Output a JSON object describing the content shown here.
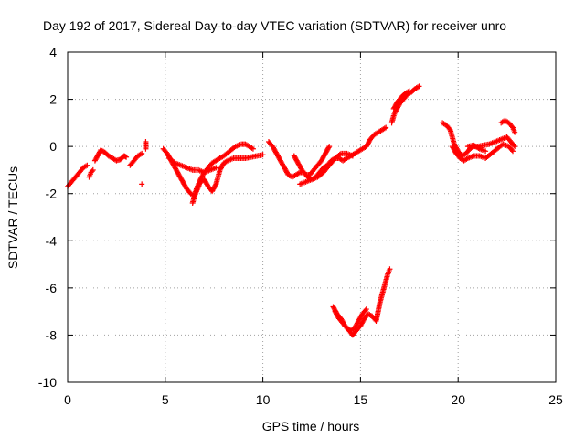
{
  "chart_data": {
    "type": "scatter",
    "title": "Day 192 of 2017, Sidereal Day-to-day VTEC variation (SDTVAR) for receiver unro",
    "xlabel": "GPS time / hours",
    "ylabel": "SDTVAR / TECUs",
    "xlim": [
      0,
      25
    ],
    "ylim": [
      -10,
      4
    ],
    "x_ticks": [
      0,
      5,
      10,
      15,
      20,
      25
    ],
    "y_ticks": [
      -10,
      -8,
      -6,
      -4,
      -2,
      0,
      2,
      4
    ],
    "grid": true,
    "marker": "plus",
    "colors": {
      "series": "#ff0000",
      "grid": "#a0a0a0",
      "axes": "#000000"
    },
    "series": [
      {
        "segments": [
          [
            [
              0.0,
              -1.7
            ],
            [
              0.2,
              -1.5
            ],
            [
              0.4,
              -1.3
            ],
            [
              0.6,
              -1.1
            ],
            [
              0.8,
              -0.9
            ],
            [
              1.0,
              -0.8
            ]
          ],
          [
            [
              1.1,
              -1.3
            ],
            [
              1.2,
              -1.1
            ],
            [
              1.3,
              -1.0
            ]
          ],
          [
            [
              1.4,
              -0.6
            ],
            [
              1.6,
              -0.3
            ],
            [
              1.7,
              -0.15
            ],
            [
              1.9,
              -0.25
            ],
            [
              2.1,
              -0.4
            ],
            [
              2.3,
              -0.5
            ],
            [
              2.5,
              -0.6
            ],
            [
              2.7,
              -0.55
            ],
            [
              2.9,
              -0.4
            ],
            [
              3.0,
              -0.45
            ]
          ],
          [
            [
              3.2,
              -0.8
            ],
            [
              3.4,
              -0.6
            ],
            [
              3.6,
              -0.4
            ],
            [
              3.8,
              -0.3
            ]
          ],
          [
            [
              3.8,
              -1.6
            ]
          ],
          [
            [
              4.0,
              0.2
            ],
            [
              4.0,
              -0.1
            ]
          ],
          [
            [
              4.9,
              -0.1
            ],
            [
              5.1,
              -0.3
            ],
            [
              5.3,
              -0.6
            ],
            [
              5.5,
              -0.9
            ],
            [
              5.7,
              -1.2
            ],
            [
              5.9,
              -1.5
            ],
            [
              6.1,
              -1.8
            ],
            [
              6.3,
              -2.0
            ],
            [
              6.5,
              -2.1
            ],
            [
              6.6,
              -1.8
            ],
            [
              6.8,
              -1.4
            ],
            [
              7.0,
              -1.1
            ],
            [
              7.2,
              -0.9
            ],
            [
              7.4,
              -0.7
            ],
            [
              7.6,
              -0.6
            ],
            [
              7.8,
              -0.5
            ],
            [
              8.0,
              -0.4
            ],
            [
              8.3,
              -0.2
            ],
            [
              8.6,
              0.0
            ],
            [
              8.9,
              0.1
            ],
            [
              9.1,
              0.1
            ],
            [
              9.3,
              0.0
            ],
            [
              9.5,
              -0.1
            ]
          ],
          [
            [
              5.2,
              -0.5
            ],
            [
              5.5,
              -0.7
            ],
            [
              5.8,
              -0.8
            ],
            [
              6.1,
              -0.9
            ],
            [
              6.4,
              -1.0
            ],
            [
              6.7,
              -1.0
            ],
            [
              7.0,
              -1.1
            ],
            [
              7.3,
              -1.0
            ],
            [
              7.6,
              -0.9
            ]
          ],
          [
            [
              6.4,
              -2.4
            ],
            [
              6.5,
              -2.1
            ],
            [
              6.6,
              -1.9
            ],
            [
              6.8,
              -1.5
            ],
            [
              7.0,
              -1.4
            ],
            [
              7.2,
              -1.7
            ],
            [
              7.4,
              -1.9
            ],
            [
              7.6,
              -1.6
            ],
            [
              7.8,
              -1.0
            ],
            [
              8.0,
              -0.7
            ],
            [
              8.2,
              -0.6
            ],
            [
              8.5,
              -0.5
            ],
            [
              8.8,
              -0.5
            ],
            [
              9.1,
              -0.5
            ],
            [
              9.4,
              -0.45
            ],
            [
              9.7,
              -0.4
            ],
            [
              10.0,
              -0.35
            ]
          ],
          [
            [
              10.3,
              0.2
            ],
            [
              10.5,
              0.0
            ],
            [
              10.7,
              -0.3
            ],
            [
              10.9,
              -0.6
            ],
            [
              11.1,
              -0.9
            ],
            [
              11.3,
              -1.2
            ],
            [
              11.5,
              -1.3
            ],
            [
              11.7,
              -1.2
            ],
            [
              11.9,
              -1.1
            ],
            [
              12.1,
              -1.1
            ],
            [
              12.3,
              -1.3
            ],
            [
              12.5,
              -1.4
            ],
            [
              12.7,
              -1.3
            ],
            [
              12.9,
              -1.1
            ],
            [
              13.1,
              -0.9
            ],
            [
              13.3,
              -0.8
            ],
            [
              13.5,
              -0.6
            ],
            [
              13.7,
              -0.5
            ],
            [
              13.9,
              -0.5
            ],
            [
              14.1,
              -0.6
            ],
            [
              14.3,
              -0.5
            ],
            [
              14.5,
              -0.4
            ],
            [
              14.7,
              -0.3
            ],
            [
              14.9,
              -0.2
            ],
            [
              15.1,
              -0.1
            ],
            [
              15.3,
              0.0
            ],
            [
              15.5,
              0.3
            ],
            [
              15.7,
              0.5
            ],
            [
              15.9,
              0.6
            ],
            [
              16.1,
              0.7
            ],
            [
              16.3,
              0.8
            ]
          ],
          [
            [
              11.6,
              -0.4
            ],
            [
              11.8,
              -0.7
            ],
            [
              12.0,
              -1.0
            ],
            [
              12.2,
              -1.2
            ],
            [
              12.4,
              -1.2
            ],
            [
              12.6,
              -1.0
            ],
            [
              12.8,
              -0.8
            ],
            [
              13.0,
              -0.6
            ],
            [
              13.2,
              -0.3
            ],
            [
              13.4,
              0.0
            ]
          ],
          [
            [
              11.9,
              -1.6
            ],
            [
              12.2,
              -1.5
            ],
            [
              12.5,
              -1.4
            ],
            [
              12.8,
              -1.3
            ],
            [
              13.1,
              -1.1
            ],
            [
              13.4,
              -0.8
            ],
            [
              13.7,
              -0.5
            ],
            [
              14.0,
              -0.3
            ],
            [
              14.3,
              -0.3
            ],
            [
              14.6,
              -0.4
            ]
          ],
          [
            [
              16.6,
              1.0
            ],
            [
              16.7,
              1.3
            ],
            [
              16.8,
              1.5
            ],
            [
              17.0,
              1.8
            ],
            [
              17.2,
              2.0
            ],
            [
              17.4,
              2.2
            ],
            [
              17.6,
              2.3
            ],
            [
              17.8,
              2.45
            ],
            [
              18.0,
              2.55
            ]
          ],
          [
            [
              16.7,
              1.6
            ],
            [
              16.9,
              1.9
            ],
            [
              17.1,
              2.1
            ],
            [
              17.3,
              2.25
            ],
            [
              17.5,
              2.35
            ]
          ],
          [
            [
              13.6,
              -6.8
            ],
            [
              13.8,
              -7.1
            ],
            [
              14.0,
              -7.3
            ],
            [
              14.2,
              -7.6
            ],
            [
              14.4,
              -7.8
            ],
            [
              14.6,
              -8.0
            ],
            [
              14.8,
              -7.8
            ],
            [
              15.0,
              -7.6
            ],
            [
              15.2,
              -7.3
            ],
            [
              15.4,
              -7.1
            ],
            [
              15.6,
              -7.2
            ],
            [
              15.8,
              -7.4
            ],
            [
              15.9,
              -7.0
            ],
            [
              16.0,
              -6.6
            ],
            [
              16.1,
              -6.3
            ],
            [
              16.2,
              -6.0
            ],
            [
              16.3,
              -5.7
            ],
            [
              16.4,
              -5.4
            ],
            [
              16.5,
              -5.2
            ]
          ],
          [
            [
              13.7,
              -7.0
            ],
            [
              13.9,
              -7.3
            ],
            [
              14.1,
              -7.5
            ],
            [
              14.3,
              -7.7
            ],
            [
              14.5,
              -7.8
            ],
            [
              14.7,
              -7.7
            ],
            [
              14.9,
              -7.4
            ],
            [
              15.1,
              -7.1
            ],
            [
              15.3,
              -6.9
            ]
          ],
          [
            [
              19.2,
              1.0
            ],
            [
              19.4,
              0.9
            ],
            [
              19.6,
              0.7
            ],
            [
              19.7,
              0.4
            ],
            [
              19.8,
              0.1
            ],
            [
              20.0,
              -0.2
            ],
            [
              20.2,
              -0.4
            ],
            [
              20.4,
              -0.3
            ],
            [
              20.6,
              -0.1
            ],
            [
              20.8,
              0.0
            ],
            [
              21.0,
              0.0
            ],
            [
              21.3,
              0.05
            ],
            [
              21.6,
              0.1
            ],
            [
              21.9,
              0.2
            ],
            [
              22.2,
              0.3
            ],
            [
              22.5,
              0.4
            ],
            [
              22.7,
              0.2
            ],
            [
              22.9,
              0.0
            ]
          ],
          [
            [
              19.7,
              0.0
            ],
            [
              19.9,
              -0.3
            ],
            [
              20.1,
              -0.5
            ],
            [
              20.3,
              -0.6
            ],
            [
              20.5,
              -0.5
            ],
            [
              20.8,
              -0.4
            ],
            [
              21.1,
              -0.4
            ],
            [
              21.4,
              -0.5
            ],
            [
              21.7,
              -0.3
            ],
            [
              22.0,
              -0.1
            ],
            [
              22.3,
              0.1
            ],
            [
              22.6,
              0.0
            ],
            [
              22.8,
              -0.2
            ]
          ],
          [
            [
              20.5,
              0.0
            ],
            [
              20.8,
              0.05
            ],
            [
              21.1,
              -0.1
            ],
            [
              21.4,
              -0.2
            ]
          ],
          [
            [
              22.2,
              1.0
            ],
            [
              22.4,
              1.1
            ],
            [
              22.6,
              1.0
            ],
            [
              22.8,
              0.8
            ],
            [
              22.9,
              0.6
            ]
          ]
        ]
      }
    ]
  }
}
